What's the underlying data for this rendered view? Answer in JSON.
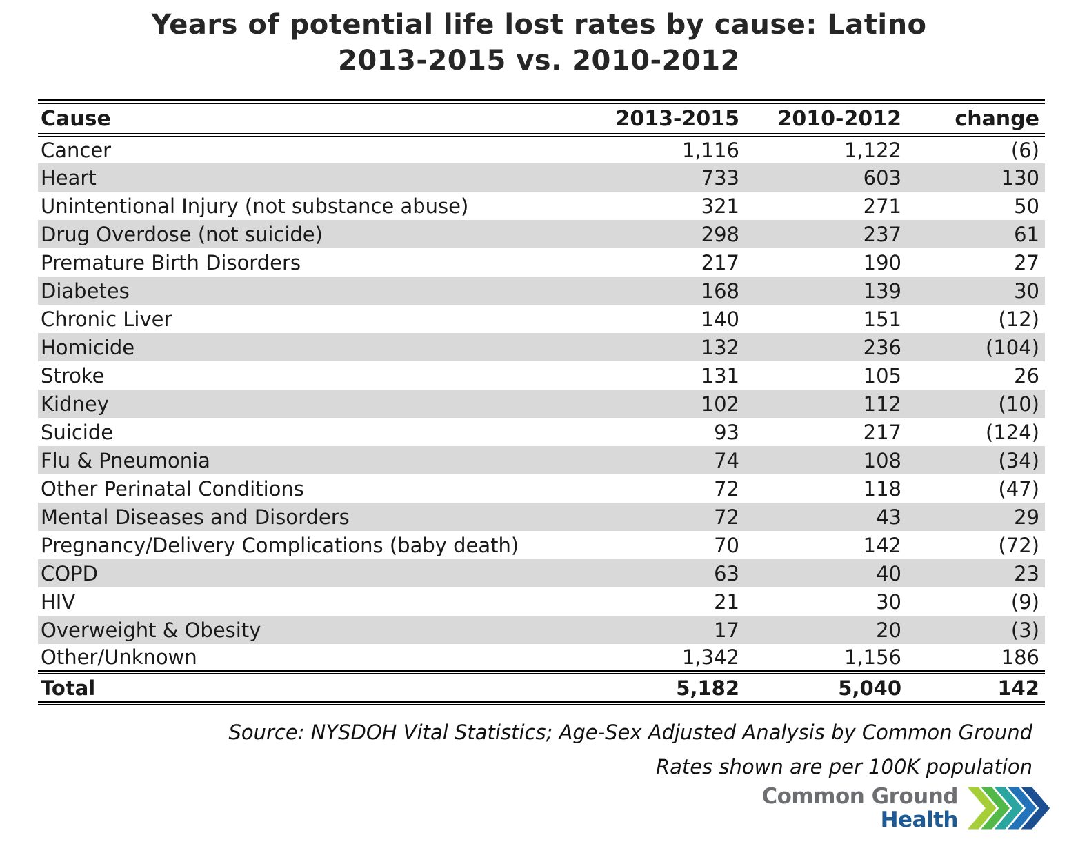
{
  "title": {
    "line1": "Years of potential life lost rates by cause: Latino",
    "line2": "2013-2015 vs. 2010-2012"
  },
  "table": {
    "columns": [
      "Cause",
      "2013-2015",
      "2010-2012",
      "change"
    ],
    "rows": [
      [
        "Cancer",
        "1,116",
        "1,122",
        "(6)"
      ],
      [
        "Heart",
        "733",
        "603",
        "130"
      ],
      [
        "Unintentional Injury (not substance abuse)",
        "321",
        "271",
        "50"
      ],
      [
        "Drug Overdose (not suicide)",
        "298",
        "237",
        "61"
      ],
      [
        "Premature Birth Disorders",
        "217",
        "190",
        "27"
      ],
      [
        "Diabetes",
        "168",
        "139",
        "30"
      ],
      [
        "Chronic Liver",
        "140",
        "151",
        "(12)"
      ],
      [
        "Homicide",
        "132",
        "236",
        "(104)"
      ],
      [
        "Stroke",
        "131",
        "105",
        "26"
      ],
      [
        "Kidney",
        "102",
        "112",
        "(10)"
      ],
      [
        "Suicide",
        "93",
        "217",
        "(124)"
      ],
      [
        "Flu & Pneumonia",
        "74",
        "108",
        "(34)"
      ],
      [
        "Other Perinatal Conditions",
        "72",
        "118",
        "(47)"
      ],
      [
        "Mental Diseases and Disorders",
        "72",
        "43",
        "29"
      ],
      [
        "Pregnancy/Delivery Complications (baby death)",
        "70",
        "142",
        "(72)"
      ],
      [
        "COPD",
        "63",
        "40",
        "23"
      ],
      [
        "HIV",
        "21",
        "30",
        "(9)"
      ],
      [
        "Overweight & Obesity",
        "17",
        "20",
        "(3)"
      ],
      [
        "Other/Unknown",
        "1,342",
        "1,156",
        "186"
      ]
    ],
    "total": [
      "Total",
      "5,182",
      "5,040",
      "142"
    ]
  },
  "footnote": {
    "line1": "Source: NYSDOH Vital Statistics; Age-Sex Adjusted Analysis by Common Ground",
    "line2": "Rates shown are per 100K population"
  },
  "logo": {
    "line1": "Common Ground",
    "line2": "Health",
    "chevron_colors": [
      "#a6ce39",
      "#52b848",
      "#2aa5a0",
      "#2273b9",
      "#1c4f91"
    ],
    "text_color_line1": "#6d6e71",
    "text_color_line2": "#1e5b94"
  },
  "colors": {
    "stripe": "#d9d9d9",
    "border": "#000000",
    "title_text": "#262626"
  },
  "chart_data": {
    "type": "table",
    "title": "Years of potential life lost rates by cause: Latino 2013-2015 vs. 2010-2012",
    "columns": [
      "Cause",
      "2013-2015",
      "2010-2012",
      "change"
    ],
    "rows": [
      {
        "cause": "Cancer",
        "y2013_2015": 1116,
        "y2010_2012": 1122,
        "change": -6
      },
      {
        "cause": "Heart",
        "y2013_2015": 733,
        "y2010_2012": 603,
        "change": 130
      },
      {
        "cause": "Unintentional Injury (not substance abuse)",
        "y2013_2015": 321,
        "y2010_2012": 271,
        "change": 50
      },
      {
        "cause": "Drug Overdose (not suicide)",
        "y2013_2015": 298,
        "y2010_2012": 237,
        "change": 61
      },
      {
        "cause": "Premature Birth Disorders",
        "y2013_2015": 217,
        "y2010_2012": 190,
        "change": 27
      },
      {
        "cause": "Diabetes",
        "y2013_2015": 168,
        "y2010_2012": 139,
        "change": 30
      },
      {
        "cause": "Chronic Liver",
        "y2013_2015": 140,
        "y2010_2012": 151,
        "change": -12
      },
      {
        "cause": "Homicide",
        "y2013_2015": 132,
        "y2010_2012": 236,
        "change": -104
      },
      {
        "cause": "Stroke",
        "y2013_2015": 131,
        "y2010_2012": 105,
        "change": 26
      },
      {
        "cause": "Kidney",
        "y2013_2015": 102,
        "y2010_2012": 112,
        "change": -10
      },
      {
        "cause": "Suicide",
        "y2013_2015": 93,
        "y2010_2012": 217,
        "change": -124
      },
      {
        "cause": "Flu & Pneumonia",
        "y2013_2015": 74,
        "y2010_2012": 108,
        "change": -34
      },
      {
        "cause": "Other Perinatal Conditions",
        "y2013_2015": 72,
        "y2010_2012": 118,
        "change": -47
      },
      {
        "cause": "Mental Diseases and Disorders",
        "y2013_2015": 72,
        "y2010_2012": 43,
        "change": 29
      },
      {
        "cause": "Pregnancy/Delivery Complications (baby death)",
        "y2013_2015": 70,
        "y2010_2012": 142,
        "change": -72
      },
      {
        "cause": "COPD",
        "y2013_2015": 63,
        "y2010_2012": 40,
        "change": 23
      },
      {
        "cause": "HIV",
        "y2013_2015": 21,
        "y2010_2012": 30,
        "change": -9
      },
      {
        "cause": "Overweight & Obesity",
        "y2013_2015": 17,
        "y2010_2012": 20,
        "change": -3
      },
      {
        "cause": "Other/Unknown",
        "y2013_2015": 1342,
        "y2010_2012": 1156,
        "change": 186
      }
    ],
    "total": {
      "cause": "Total",
      "y2013_2015": 5182,
      "y2010_2012": 5040,
      "change": 142
    },
    "notes": [
      "Source: NYSDOH Vital Statistics; Age-Sex Adjusted Analysis by Common Ground",
      "Rates shown are per 100K population"
    ],
    "negative_format": "parentheses"
  }
}
